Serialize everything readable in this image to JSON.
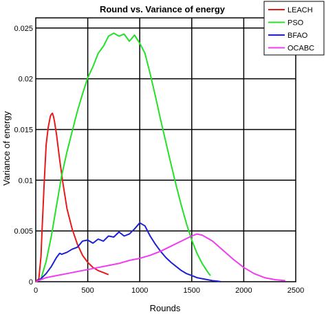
{
  "chart_data": {
    "type": "line",
    "title": "Round vs. Variance of energy",
    "xlabel": "Rounds",
    "ylabel": "Variance of energy",
    "xlim": [
      0,
      2500
    ],
    "ylim": [
      0,
      0.026
    ],
    "x_ticks": [
      0,
      500,
      1000,
      1500,
      2000,
      2500
    ],
    "x_tick_labels": [
      "0",
      "500",
      "1000",
      "1500",
      "2000",
      "2500"
    ],
    "y_ticks": [
      0,
      0.005,
      0.01,
      0.015,
      0.02,
      0.025
    ],
    "y_tick_labels": [
      "0",
      "0.005",
      "0.01",
      "0.015",
      "0.02",
      "0.025"
    ],
    "grid": true,
    "legend_position": "top-right",
    "series": [
      {
        "name": "LEACH",
        "color": "#e8191a",
        "x": [
          0,
          30,
          50,
          60,
          80,
          100,
          120,
          140,
          150,
          160,
          170,
          180,
          200,
          230,
          260,
          300,
          350,
          400,
          450,
          500,
          550,
          600,
          650,
          700
        ],
        "y": [
          0,
          0.0003,
          0.0025,
          0.005,
          0.0095,
          0.0135,
          0.0152,
          0.0163,
          0.0165,
          0.0166,
          0.0163,
          0.0158,
          0.0145,
          0.012,
          0.0098,
          0.0072,
          0.0052,
          0.0037,
          0.0026,
          0.0019,
          0.0014,
          0.0011,
          0.0009,
          0.0007
        ]
      },
      {
        "name": "PSO",
        "color": "#22e126",
        "x": [
          0,
          50,
          100,
          150,
          200,
          250,
          300,
          350,
          400,
          450,
          500,
          550,
          600,
          650,
          700,
          750,
          800,
          850,
          900,
          950,
          1000,
          1050,
          1100,
          1150,
          1200,
          1250,
          1300,
          1350,
          1400,
          1450,
          1500,
          1550,
          1600,
          1650,
          1680
        ],
        "y": [
          0,
          0.0003,
          0.002,
          0.0045,
          0.0075,
          0.0105,
          0.0128,
          0.0148,
          0.0168,
          0.0185,
          0.0201,
          0.0212,
          0.0225,
          0.0232,
          0.0242,
          0.0245,
          0.0242,
          0.0244,
          0.0237,
          0.0243,
          0.0235,
          0.0225,
          0.0205,
          0.0183,
          0.016,
          0.0138,
          0.0116,
          0.0095,
          0.0075,
          0.0057,
          0.0041,
          0.0028,
          0.0018,
          0.001,
          0.0006
        ]
      },
      {
        "name": "BFAO",
        "color": "#1c20d4",
        "x": [
          0,
          50,
          100,
          150,
          200,
          230,
          250,
          300,
          350,
          400,
          450,
          500,
          550,
          600,
          650,
          700,
          750,
          800,
          850,
          900,
          950,
          1000,
          1050,
          1100,
          1150,
          1200,
          1250,
          1300,
          1350,
          1400,
          1450,
          1500,
          1550,
          1600,
          1650,
          1700,
          1750,
          1780
        ],
        "y": [
          0,
          0.0003,
          0.0008,
          0.0015,
          0.0024,
          0.0028,
          0.0027,
          0.0029,
          0.0032,
          0.0034,
          0.004,
          0.0041,
          0.0038,
          0.0042,
          0.004,
          0.0045,
          0.0044,
          0.0049,
          0.0045,
          0.0047,
          0.0052,
          0.0058,
          0.0055,
          0.0045,
          0.0037,
          0.003,
          0.0024,
          0.0019,
          0.0015,
          0.0011,
          0.0008,
          0.0006,
          0.0004,
          0.0003,
          0.0002,
          0.0001,
          5e-05,
          0
        ]
      },
      {
        "name": "OCABC",
        "color": "#ef3cf0",
        "x": [
          0,
          100,
          200,
          300,
          400,
          500,
          600,
          700,
          800,
          900,
          1000,
          1100,
          1200,
          1300,
          1400,
          1500,
          1550,
          1600,
          1650,
          1700,
          1800,
          1900,
          2000,
          2100,
          2200,
          2300,
          2400
        ],
        "y": [
          0,
          0.0004,
          0.0006,
          0.0008,
          0.001,
          0.0012,
          0.0014,
          0.0016,
          0.0018,
          0.0021,
          0.0023,
          0.0026,
          0.003,
          0.0035,
          0.004,
          0.0045,
          0.0047,
          0.0046,
          0.0043,
          0.004,
          0.0031,
          0.0022,
          0.0014,
          0.0008,
          0.0004,
          0.0002,
          0.0001
        ]
      }
    ]
  }
}
